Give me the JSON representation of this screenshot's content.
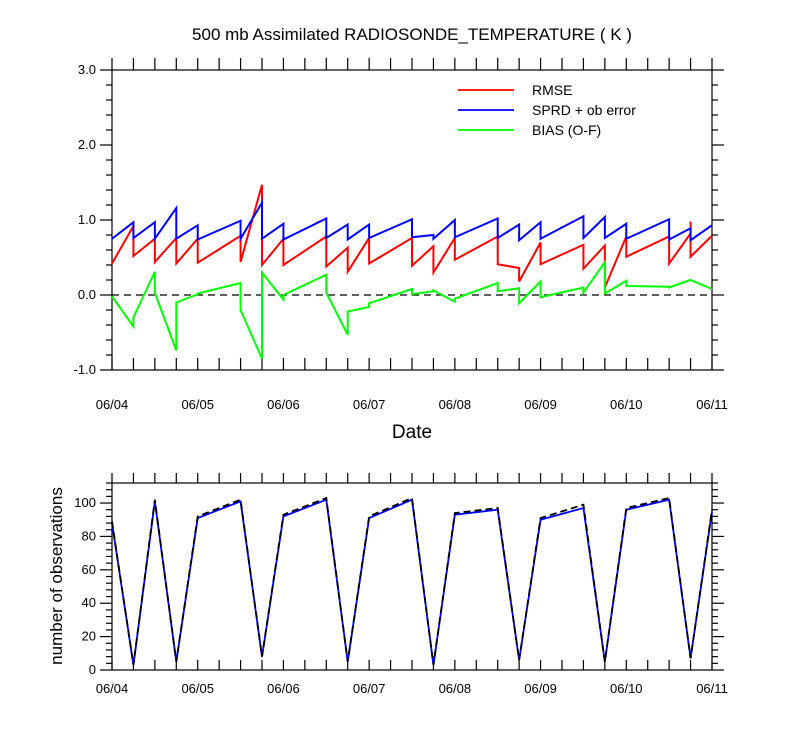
{
  "chart_data": [
    {
      "type": "line",
      "title": "500 mb Assimilated RADIOSONDE_TEMPERATURE ( K )",
      "xlabel": "Date",
      "ylabel": "",
      "xlim": [
        "2019-06-04T00",
        "2019-06-11T00"
      ],
      "ylim": [
        -1.0,
        3.0
      ],
      "x_tick_labels": [
        "06/04",
        "06/05",
        "06/06",
        "06/07",
        "06/08",
        "06/09",
        "06/10",
        "06/11"
      ],
      "y_tick_labels": [
        "-1.0",
        "0.0",
        "1.0",
        "2.0",
        "3.0"
      ],
      "y_ticks": [
        -1.0,
        0.0,
        1.0,
        2.0,
        3.0
      ],
      "reference_line": {
        "y": 0.0,
        "style": "dashed"
      },
      "legend": {
        "placement": "top-right",
        "entries": [
          "RMSE",
          "SPRD + ob error",
          "BIAS (O-F)"
        ]
      },
      "colors": {
        "RMSE": "#ff0000",
        "SPRD + ob error": "#0000ff",
        "BIAS (O-F)": "#00ff00"
      },
      "series": [
        {
          "name": "RMSE",
          "points": [
            [
              "2019-06-04T00",
              0.42
            ],
            [
              "2019-06-04T06",
              0.92
            ],
            [
              "2019-06-04T06",
              0.52
            ],
            [
              "2019-06-04T12",
              0.75
            ],
            [
              "2019-06-04T12",
              0.44
            ],
            [
              "2019-06-04T18",
              0.76
            ],
            [
              "2019-06-04T18",
              0.42
            ],
            [
              "2019-06-05T00",
              0.75
            ],
            [
              "2019-06-05T00",
              0.43
            ],
            [
              "2019-06-05T12",
              0.79
            ],
            [
              "2019-06-05T12",
              0.44
            ],
            [
              "2019-06-05T18",
              1.47
            ],
            [
              "2019-06-05T18",
              0.4
            ],
            [
              "2019-06-06T00",
              0.75
            ],
            [
              "2019-06-06T00",
              0.4
            ],
            [
              "2019-06-06T12",
              0.78
            ],
            [
              "2019-06-06T12",
              0.38
            ],
            [
              "2019-06-06T18",
              0.63
            ],
            [
              "2019-06-06T18",
              0.31
            ],
            [
              "2019-06-07T00",
              0.76
            ],
            [
              "2019-06-07T00",
              0.42
            ],
            [
              "2019-06-07T12",
              0.76
            ],
            [
              "2019-06-07T12",
              0.39
            ],
            [
              "2019-06-07T18",
              0.65
            ],
            [
              "2019-06-07T18",
              0.3
            ],
            [
              "2019-06-08T00",
              0.76
            ],
            [
              "2019-06-08T00",
              0.47
            ],
            [
              "2019-06-08T12",
              0.78
            ],
            [
              "2019-06-08T12",
              0.41
            ],
            [
              "2019-06-08T18",
              0.36
            ],
            [
              "2019-06-08T18",
              0.18
            ],
            [
              "2019-06-09T00",
              0.7
            ],
            [
              "2019-06-09T00",
              0.41
            ],
            [
              "2019-06-09T12",
              0.67
            ],
            [
              "2019-06-09T12",
              0.35
            ],
            [
              "2019-06-09T18",
              0.66
            ],
            [
              "2019-06-09T18",
              0.1
            ],
            [
              "2019-06-10T00",
              0.78
            ],
            [
              "2019-06-10T00",
              0.51
            ],
            [
              "2019-06-10T12",
              0.78
            ],
            [
              "2019-06-10T12",
              0.42
            ],
            [
              "2019-06-10T18",
              0.82
            ],
            [
              "2019-06-10T18",
              0.98
            ],
            [
              "2019-06-10T18",
              0.51
            ],
            [
              "2019-06-11T00",
              0.79
            ]
          ]
        },
        {
          "name": "SPRD + ob error",
          "points": [
            [
              "2019-06-04T00",
              0.75
            ],
            [
              "2019-06-04T06",
              0.97
            ],
            [
              "2019-06-04T06",
              0.76
            ],
            [
              "2019-06-04T12",
              0.97
            ],
            [
              "2019-06-04T12",
              0.75
            ],
            [
              "2019-06-04T18",
              1.16
            ],
            [
              "2019-06-04T18",
              0.75
            ],
            [
              "2019-06-05T00",
              0.93
            ],
            [
              "2019-06-05T00",
              0.74
            ],
            [
              "2019-06-05T12",
              0.99
            ],
            [
              "2019-06-05T12",
              0.75
            ],
            [
              "2019-06-05T18",
              1.23
            ],
            [
              "2019-06-05T18",
              0.75
            ],
            [
              "2019-06-06T00",
              0.95
            ],
            [
              "2019-06-06T00",
              0.74
            ],
            [
              "2019-06-06T12",
              1.02
            ],
            [
              "2019-06-06T12",
              0.76
            ],
            [
              "2019-06-06T18",
              0.94
            ],
            [
              "2019-06-06T18",
              0.74
            ],
            [
              "2019-06-07T00",
              0.94
            ],
            [
              "2019-06-07T00",
              0.76
            ],
            [
              "2019-06-07T12",
              1.01
            ],
            [
              "2019-06-07T12",
              0.77
            ],
            [
              "2019-06-07T18",
              0.8
            ],
            [
              "2019-06-07T18",
              0.75
            ],
            [
              "2019-06-08T00",
              1.0
            ],
            [
              "2019-06-08T00",
              0.77
            ],
            [
              "2019-06-08T12",
              1.02
            ],
            [
              "2019-06-08T12",
              0.76
            ],
            [
              "2019-06-08T18",
              0.94
            ],
            [
              "2019-06-08T18",
              0.73
            ],
            [
              "2019-06-09T00",
              0.97
            ],
            [
              "2019-06-09T00",
              0.75
            ],
            [
              "2019-06-09T12",
              1.05
            ],
            [
              "2019-06-09T12",
              0.76
            ],
            [
              "2019-06-09T18",
              1.04
            ],
            [
              "2019-06-09T18",
              0.76
            ],
            [
              "2019-06-10T00",
              0.95
            ],
            [
              "2019-06-10T00",
              0.75
            ],
            [
              "2019-06-10T12",
              1.01
            ],
            [
              "2019-06-10T12",
              0.74
            ],
            [
              "2019-06-10T18",
              0.89
            ],
            [
              "2019-06-10T18",
              0.73
            ],
            [
              "2019-06-11T00",
              0.93
            ]
          ]
        },
        {
          "name": "BIAS (O-F)",
          "points": [
            [
              "2019-06-04T00",
              -0.02
            ],
            [
              "2019-06-04T06",
              -0.42
            ],
            [
              "2019-06-04T06",
              -0.3
            ],
            [
              "2019-06-04T12",
              0.31
            ],
            [
              "2019-06-04T12",
              0.03
            ],
            [
              "2019-06-04T18",
              -0.74
            ],
            [
              "2019-06-04T18",
              -0.1
            ],
            [
              "2019-06-05T00",
              0.01
            ],
            [
              "2019-06-05T00",
              0.02
            ],
            [
              "2019-06-05T12",
              0.16
            ],
            [
              "2019-06-05T12",
              -0.2
            ],
            [
              "2019-06-05T18",
              -0.85
            ],
            [
              "2019-06-05T18",
              0.3
            ],
            [
              "2019-06-06T00",
              -0.06
            ],
            [
              "2019-06-06T00",
              0.0
            ],
            [
              "2019-06-06T12",
              0.27
            ],
            [
              "2019-06-06T12",
              0.03
            ],
            [
              "2019-06-06T18",
              -0.53
            ],
            [
              "2019-06-06T18",
              -0.22
            ],
            [
              "2019-06-07T00",
              -0.16
            ],
            [
              "2019-06-07T00",
              -0.11
            ],
            [
              "2019-06-07T12",
              0.08
            ],
            [
              "2019-06-07T12",
              0.01
            ],
            [
              "2019-06-07T18",
              0.05
            ],
            [
              "2019-06-07T18",
              0.06
            ],
            [
              "2019-06-08T00",
              -0.09
            ],
            [
              "2019-06-08T00",
              -0.05
            ],
            [
              "2019-06-08T12",
              0.16
            ],
            [
              "2019-06-08T12",
              0.05
            ],
            [
              "2019-06-08T18",
              0.09
            ],
            [
              "2019-06-08T18",
              -0.11
            ],
            [
              "2019-06-09T00",
              0.18
            ],
            [
              "2019-06-09T00",
              -0.03
            ],
            [
              "2019-06-09T12",
              0.1
            ],
            [
              "2019-06-09T12",
              0.03
            ],
            [
              "2019-06-09T18",
              0.44
            ],
            [
              "2019-06-09T18",
              0.02
            ],
            [
              "2019-06-10T00",
              0.19
            ],
            [
              "2019-06-10T00",
              0.12
            ],
            [
              "2019-06-10T12",
              0.11
            ],
            [
              "2019-06-10T12",
              0.1
            ],
            [
              "2019-06-10T18",
              0.2
            ],
            [
              "2019-06-11T00",
              0.08
            ]
          ]
        }
      ]
    },
    {
      "type": "line",
      "title": "",
      "xlabel": "",
      "ylabel": "number of observations",
      "xlim": [
        "2019-06-04T00",
        "2019-06-11T00"
      ],
      "ylim": [
        0,
        112
      ],
      "x_tick_labels": [
        "06/04",
        "06/05",
        "06/06",
        "06/07",
        "06/08",
        "06/09",
        "06/10",
        "06/11"
      ],
      "y_tick_labels": [
        "0",
        "20",
        "40",
        "60",
        "80",
        "100"
      ],
      "y_ticks": [
        0,
        20,
        40,
        60,
        80,
        100
      ],
      "colors": {
        "assimilated": "#0000ff",
        "possible": "#000000"
      },
      "series": [
        {
          "style": "solid",
          "points": [
            [
              "2019-06-04T00",
              88
            ],
            [
              "2019-06-04T06",
              3
            ],
            [
              "2019-06-04T12",
              101
            ],
            [
              "2019-06-04T18",
              5
            ],
            [
              "2019-06-05T00",
              91
            ],
            [
              "2019-06-05T12",
              101
            ],
            [
              "2019-06-05T18",
              8
            ],
            [
              "2019-06-06T00",
              92
            ],
            [
              "2019-06-06T12",
              102
            ],
            [
              "2019-06-06T18",
              5
            ],
            [
              "2019-06-07T00",
              91
            ],
            [
              "2019-06-07T12",
              102
            ],
            [
              "2019-06-07T18",
              3
            ],
            [
              "2019-06-08T00",
              93
            ],
            [
              "2019-06-08T12",
              96
            ],
            [
              "2019-06-08T18",
              6
            ],
            [
              "2019-06-09T00",
              90
            ],
            [
              "2019-06-09T12",
              97
            ],
            [
              "2019-06-09T18",
              5
            ],
            [
              "2019-06-10T00",
              96
            ],
            [
              "2019-06-10T12",
              102
            ],
            [
              "2019-06-10T18",
              7
            ],
            [
              "2019-06-11T00",
              95
            ]
          ]
        },
        {
          "style": "dashed",
          "points": [
            [
              "2019-06-04T00",
              89
            ],
            [
              "2019-06-04T06",
              3
            ],
            [
              "2019-06-04T12",
              102
            ],
            [
              "2019-06-04T18",
              5
            ],
            [
              "2019-06-05T00",
              92
            ],
            [
              "2019-06-05T12",
              102
            ],
            [
              "2019-06-05T18",
              8
            ],
            [
              "2019-06-06T00",
              93
            ],
            [
              "2019-06-06T12",
              103
            ],
            [
              "2019-06-06T18",
              5
            ],
            [
              "2019-06-07T00",
              92
            ],
            [
              "2019-06-07T12",
              103
            ],
            [
              "2019-06-07T18",
              3
            ],
            [
              "2019-06-08T00",
              94
            ],
            [
              "2019-06-08T12",
              97
            ],
            [
              "2019-06-08T18",
              6
            ],
            [
              "2019-06-09T00",
              91
            ],
            [
              "2019-06-09T12",
              99
            ],
            [
              "2019-06-09T18",
              5
            ],
            [
              "2019-06-10T00",
              97
            ],
            [
              "2019-06-10T12",
              103
            ],
            [
              "2019-06-10T18",
              7
            ],
            [
              "2019-06-11T00",
              96
            ]
          ]
        }
      ]
    }
  ]
}
